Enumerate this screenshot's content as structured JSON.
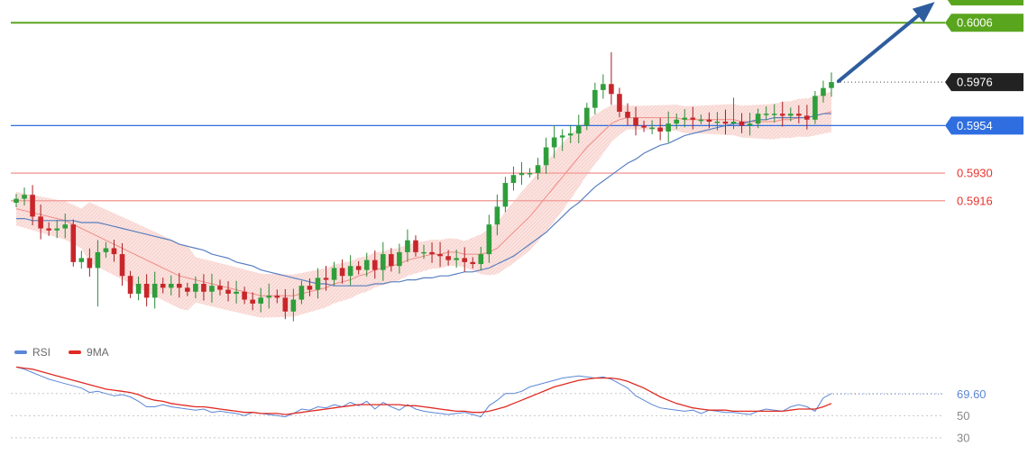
{
  "chart_data": [
    {
      "type": "candlestick",
      "title": "",
      "ylim": [
        0.58535,
        0.60175
      ],
      "levels": [
        {
          "name": "resistance",
          "value": 0.6006,
          "label": "0.6006",
          "color": "#5aa51e",
          "style": "solid-label"
        },
        {
          "name": "current",
          "value": 0.5976,
          "label": "0.5976",
          "color": "#222222",
          "style": "dotted-label"
        },
        {
          "name": "pivot",
          "value": 0.5954,
          "label": "0.5954",
          "color": "#2f6ee0",
          "style": "solid-label"
        },
        {
          "name": "support-1",
          "value": 0.593,
          "label": "0.5930",
          "color": "#e8332c",
          "style": "text"
        },
        {
          "name": "support-2",
          "value": 0.5916,
          "label": "0.5916",
          "color": "#e8332c",
          "style": "text"
        }
      ],
      "candles_close": [
        0.5917,
        0.5919,
        0.5908,
        0.5902,
        0.5901,
        0.5902,
        0.5904,
        0.5885,
        0.5887,
        0.5882,
        0.589,
        0.5892,
        0.5889,
        0.5878,
        0.5869,
        0.5874,
        0.5867,
        0.5874,
        0.5872,
        0.5874,
        0.5872,
        0.587,
        0.5874,
        0.587,
        0.5873,
        0.5871,
        0.5869,
        0.587,
        0.5866,
        0.5864,
        0.5867,
        0.5868,
        0.5867,
        0.586,
        0.5866,
        0.5873,
        0.5871,
        0.5877,
        0.5876,
        0.5882,
        0.5878,
        0.5883,
        0.5881,
        0.5886,
        0.5881,
        0.5889,
        0.5883,
        0.589,
        0.5896,
        0.589,
        0.589,
        0.5889,
        0.5888,
        0.5886,
        0.5887,
        0.5885,
        0.5884,
        0.5889,
        0.5904,
        0.5913,
        0.5925,
        0.5929,
        0.593,
        0.593,
        0.5934,
        0.5943,
        0.5948,
        0.5949,
        0.595,
        0.5954,
        0.5963,
        0.5972,
        0.5975,
        0.597,
        0.5961,
        0.5958,
        0.5954,
        0.5953,
        0.5953,
        0.5951,
        0.5955,
        0.5957,
        0.5958,
        0.5957,
        0.5957,
        0.5956,
        0.5956,
        0.5955,
        0.5956,
        0.5954,
        0.5955,
        0.596,
        0.596,
        0.596,
        0.5959,
        0.596,
        0.5959,
        0.5957,
        0.5969,
        0.5973,
        0.5976
      ],
      "bollinger_center": [
        0.5912,
        0.5911,
        0.591,
        0.5909,
        0.5908,
        0.5907,
        0.5906,
        0.5904,
        0.5902,
        0.59,
        0.5898,
        0.5896,
        0.5894,
        0.5892,
        0.589,
        0.5888,
        0.5886,
        0.5884,
        0.5882,
        0.588,
        0.5878,
        0.5877,
        0.5876,
        0.5875,
        0.5874,
        0.5873,
        0.5872,
        0.5871,
        0.587,
        0.5869,
        0.5868,
        0.5868,
        0.5868,
        0.5868,
        0.5868,
        0.5869,
        0.587,
        0.5871,
        0.5872,
        0.5874,
        0.5875,
        0.5876,
        0.5878,
        0.5879,
        0.5881,
        0.5882,
        0.5883,
        0.5884,
        0.5886,
        0.5887,
        0.5888,
        0.5889,
        0.5889,
        0.589,
        0.589,
        0.5889,
        0.5889,
        0.5889,
        0.589,
        0.5892,
        0.5896,
        0.59,
        0.5904,
        0.5908,
        0.5913,
        0.5918,
        0.5923,
        0.5928,
        0.5933,
        0.5938,
        0.5943,
        0.5947,
        0.5951,
        0.5955,
        0.5957,
        0.5958,
        0.5958,
        0.5958,
        0.5958,
        0.5958,
        0.5958,
        0.5958,
        0.5957,
        0.5957,
        0.5957,
        0.5957,
        0.5957,
        0.5957,
        0.5957,
        0.5956,
        0.5956,
        0.5956,
        0.5956,
        0.5956,
        0.5957,
        0.5957,
        0.5958,
        0.5958,
        0.5959,
        0.596,
        0.5961
      ],
      "moving_average": [
        0.5907,
        0.5907,
        0.5906,
        0.5906,
        0.5906,
        0.5906,
        0.5906,
        0.5906,
        0.5905,
        0.5905,
        0.5905,
        0.5904,
        0.5903,
        0.5902,
        0.5901,
        0.59,
        0.5899,
        0.5898,
        0.5897,
        0.5896,
        0.5894,
        0.5893,
        0.5892,
        0.5891,
        0.5889,
        0.5888,
        0.5887,
        0.5885,
        0.5884,
        0.5883,
        0.5881,
        0.588,
        0.5879,
        0.5878,
        0.5877,
        0.5876,
        0.5875,
        0.5874,
        0.5874,
        0.5873,
        0.5873,
        0.5873,
        0.5873,
        0.5873,
        0.5874,
        0.5874,
        0.5875,
        0.5875,
        0.5876,
        0.5876,
        0.5877,
        0.5877,
        0.5878,
        0.5878,
        0.5879,
        0.588,
        0.588,
        0.5881,
        0.5882,
        0.5884,
        0.5886,
        0.5888,
        0.5891,
        0.5894,
        0.5897,
        0.59,
        0.5904,
        0.5908,
        0.5912,
        0.5915,
        0.5919,
        0.5923,
        0.5926,
        0.5929,
        0.5932,
        0.5935,
        0.5937,
        0.594,
        0.5942,
        0.5944,
        0.5945,
        0.5947,
        0.5949,
        0.595,
        0.5951,
        0.5952,
        0.5953,
        0.5954,
        0.5955,
        0.5955,
        0.5956,
        0.5957,
        0.5957,
        0.5958,
        0.5958,
        0.5958,
        0.5958,
        0.5958,
        0.5959,
        0.596,
        0.596
      ]
    },
    {
      "type": "line",
      "title": "",
      "ylim": [
        25,
        100
      ],
      "y_ticks": [
        30,
        50
      ],
      "current_value": 69.6,
      "current_label": "69.60",
      "series": [
        {
          "name": "RSI",
          "color": "#5b86d6",
          "values": [
            94,
            92,
            89,
            86,
            83,
            81,
            79,
            77,
            75,
            71,
            72,
            70,
            68,
            69,
            67,
            63,
            58,
            58,
            60,
            58,
            57,
            56,
            55,
            56,
            53,
            54,
            53,
            52,
            50,
            53,
            52,
            51,
            50,
            49,
            52,
            56,
            55,
            58,
            57,
            60,
            58,
            62,
            59,
            63,
            56,
            62,
            58,
            55,
            60,
            56,
            54,
            53,
            52,
            51,
            52,
            53,
            51,
            49,
            59,
            64,
            70,
            70,
            72,
            76,
            78,
            80,
            82,
            84,
            85,
            86,
            85,
            84,
            85,
            83,
            79,
            75,
            68,
            64,
            60,
            57,
            56,
            55,
            54,
            55,
            52,
            55,
            54,
            53,
            53,
            52,
            51,
            54,
            56,
            55,
            54,
            58,
            60,
            58,
            54,
            66,
            70
          ]
        },
        {
          "name": "9MA",
          "color": "#e02a23",
          "values": [
            94,
            93,
            92,
            90,
            88,
            86,
            84,
            82,
            80,
            78,
            76,
            74,
            73,
            72,
            71,
            69,
            66,
            64,
            63,
            61,
            60,
            59,
            58,
            58,
            57,
            56,
            55,
            54,
            53,
            53,
            52,
            52,
            52,
            51,
            52,
            53,
            54,
            55,
            56,
            57,
            58,
            59,
            60,
            60,
            60,
            60,
            60,
            60,
            59,
            59,
            58,
            57,
            56,
            55,
            54,
            54,
            53,
            53,
            54,
            56,
            58,
            61,
            64,
            67,
            70,
            73,
            76,
            78,
            80,
            82,
            83,
            84,
            84,
            84,
            83,
            81,
            78,
            75,
            71,
            67,
            64,
            61,
            59,
            57,
            56,
            55,
            55,
            55,
            54,
            54,
            54,
            54,
            54,
            54,
            54,
            55,
            56,
            56,
            56,
            58,
            61
          ]
        }
      ]
    }
  ],
  "legend": {
    "rsi_label": "RSI",
    "rsi_color": "#5b86d6",
    "ma_label": "9MA",
    "ma_color": "#e02a23"
  },
  "trend_arrow": {
    "direction": "up",
    "color": "#2e5d9e"
  }
}
